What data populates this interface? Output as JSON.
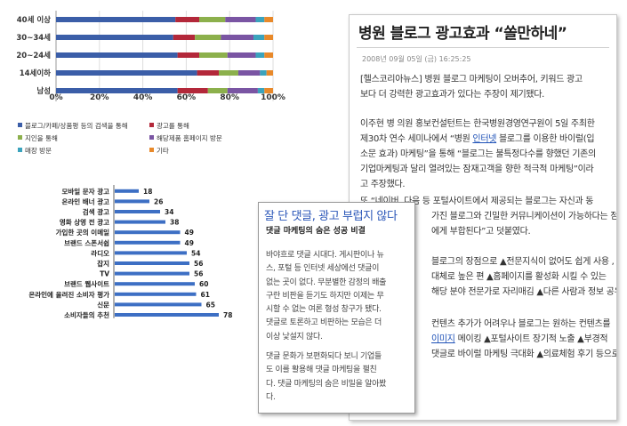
{
  "chart_data": [
    {
      "type": "bar",
      "orientation": "horizontal",
      "stacked": true,
      "percent": true,
      "title": "",
      "categories": [
        "40세 이상",
        "30~34세",
        "20~24세",
        "14세이하",
        "남성"
      ],
      "xlim": [
        0,
        100
      ],
      "x_tick_labels": [
        "0%",
        "20%",
        "40%",
        "60%",
        "80%",
        "100%"
      ],
      "series": [
        {
          "name": "블로그/카페/상품평 등의 검색을 통해",
          "color": "#3b5ea8",
          "values": [
            55,
            54,
            56,
            65,
            56
          ]
        },
        {
          "name": "광고를 통해",
          "color": "#b3283a",
          "values": [
            11,
            10,
            10,
            10,
            14
          ]
        },
        {
          "name": "지인을 통해",
          "color": "#8cb04c",
          "values": [
            12,
            12,
            13,
            9,
            9
          ]
        },
        {
          "name": "해당제품 홈페이지 방문",
          "color": "#7a55a3",
          "values": [
            14,
            15,
            13,
            10,
            14
          ]
        },
        {
          "name": "매장 방문",
          "color": "#3ba3bd",
          "values": [
            4,
            5,
            4,
            3,
            3
          ]
        },
        {
          "name": "기타",
          "color": "#e8892a",
          "values": [
            4,
            4,
            4,
            3,
            4
          ]
        }
      ],
      "legend": {
        "items": [
          {
            "label": "블로그/카페/상품평 등의 검색을 통해",
            "color": "#3b5ea8"
          },
          {
            "label": "광고를 통해",
            "color": "#b3283a"
          },
          {
            "label": "지인을 통해",
            "color": "#8cb04c"
          },
          {
            "label": "해당제품 홈페이지 방문",
            "color": "#7a55a3"
          },
          {
            "label": "매장 방문",
            "color": "#3ba3bd"
          },
          {
            "label": "기타",
            "color": "#e8892a"
          }
        ]
      }
    },
    {
      "type": "bar",
      "orientation": "horizontal",
      "title": "",
      "bar_color": "#3d6fc4",
      "categories": [
        "모바일 문자 광고",
        "온라인 배너 광고",
        "검색 광고",
        "영화 상영 전 광고",
        "가입한 곳의 이메일",
        "브랜드 스폰서쉽",
        "라디오",
        "잡지",
        "TV",
        "브랜드 웹사이트",
        "온라인에 올려진 소비자 평가",
        "신문",
        "소비자들의 추천"
      ],
      "values": [
        18,
        26,
        34,
        38,
        49,
        49,
        54,
        56,
        56,
        60,
        61,
        65,
        78
      ],
      "data_labels": [
        "18",
        "26",
        "34",
        "38",
        "49",
        "49",
        "54",
        "56",
        "56",
        "60",
        "61",
        "65",
        "78"
      ],
      "xlim": [
        0,
        100
      ]
    }
  ],
  "article": {
    "title": "병원 블로그 광고효과 “쏠만하네”",
    "date": "2008년 09월 05일 (금) 16:25:25",
    "p1": [
      "[헬스코리아뉴스] 병원 블로그 마케팅이 오버추어, 키워드 광고",
      "보다 더 강력한 광고효과가 있다는 주장이 제기됐다."
    ],
    "p2": [
      "이주현 병 의원 홍보컨설턴트는 한국병원경영연구원이 5일 주최한",
      "제30차 연수 세미나에서 “병원 ",
      "인터넷",
      " 블로그를 이용한 바이럴(입",
      "소문 효과) 마케팅”을 통해 “블로그는 불특정다수를 향했던 기존의",
      "기업마케팅과 달리 열려있는 잠재고객을 향한 적극적 마케팅”이라",
      "고 주장했다."
    ],
    "p3": [
      "또 “네이버, 다음 등 포털사이트에서 제공되는 블로그는 자신과 동",
      "가진 블로그와 긴밀한 커뮤니케이션이 가능하다는 점",
      "에게 부합된다”고 덧붙였다."
    ],
    "p4": [
      "블로그의 장점으로 ▲전문지식이 없어도 쉽게 사용 ,",
      "대체로 높은 편 ▲홈페이지를 활성화 시킬 수 있는",
      "해당 분야 전문가로 자리매김 ▲다른 사람과 정보 공유"
    ],
    "p5": [
      "컨텐츠 추가가 어려우나 블로그는 원하는 컨텐츠를",
      "",
      "이미지",
      " 메이킹 ▲포털사이트 장기적 노출 ▲부경적",
      "댓글로 바이럴 마케팅 극대화 ▲의료체험 후기 등으로"
    ]
  },
  "card": {
    "title": "잘 단 댓글, 광고 부럽지 않다",
    "subtitle": "댓글 마케팅의 숨은 성공 비결",
    "p1": [
      "바야흐로 댓글 시대다. 게시판이나 뉴",
      "스, 포털 등 인터넷 세상에선 댓글이",
      "없는 곳이 없다. 무분별한 감정의 배출",
      "구란 비판을 듣기도 하지만 이제는 무",
      "시할 수 없는 여론 형성 창구가 됐다.",
      "댓글로 토론하고 비판하는 모습은 더",
      "이상 낯설지 않다."
    ],
    "p2": [
      "댓글 문화가 보편화되다 보니 기업들",
      "도 이를 활용해 댓글 마케팅을 펼친",
      "다. 댓글 마케팅의 숨은 비밀을 알아봤",
      "다."
    ]
  }
}
